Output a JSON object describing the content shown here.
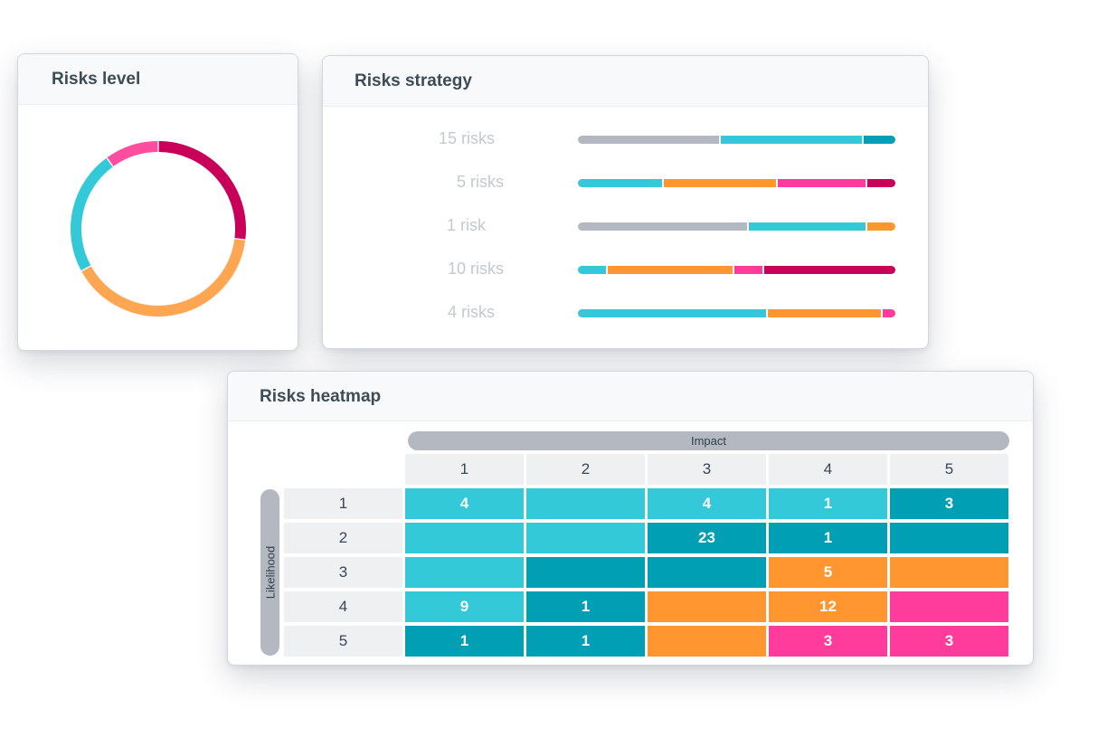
{
  "colors": {
    "gray": "#b4b8c0",
    "light_teal": "#33c9d8",
    "dark_teal": "#009fb4",
    "orange": "#ff9630",
    "pink": "#ff3c9b",
    "magenta": "#c8005a",
    "soft_orange": "#ffa653",
    "soft_pink": "#ff4e9f"
  },
  "risks_level": {
    "title": "Risks level",
    "chart_data": {
      "type": "pie",
      "segments": [
        {
          "color": "magenta",
          "value": 27
        },
        {
          "color": "soft_orange",
          "value": 40
        },
        {
          "color": "light_teal",
          "value": 23
        },
        {
          "color": "soft_pink",
          "value": 10
        }
      ]
    }
  },
  "risks_strategy": {
    "title": "Risks strategy",
    "chart_data": {
      "type": "bar",
      "orientation": "horizontal-stacked",
      "rows": [
        {
          "label": "15 risks",
          "segments": [
            {
              "color": "gray",
              "value": 45
            },
            {
              "color": "light_teal",
              "value": 45
            },
            {
              "color": "dark_teal",
              "value": 10
            }
          ]
        },
        {
          "label": "5 risks",
          "segments": [
            {
              "color": "light_teal",
              "value": 27
            },
            {
              "color": "orange",
              "value": 36
            },
            {
              "color": "pink",
              "value": 28
            },
            {
              "color": "magenta",
              "value": 9
            }
          ]
        },
        {
          "label": "1 risk",
          "segments": [
            {
              "color": "gray",
              "value": 54
            },
            {
              "color": "light_teal",
              "value": 37
            },
            {
              "color": "orange",
              "value": 9
            }
          ]
        },
        {
          "label": "10 risks",
          "segments": [
            {
              "color": "light_teal",
              "value": 9
            },
            {
              "color": "orange",
              "value": 40
            },
            {
              "color": "pink",
              "value": 9
            },
            {
              "color": "magenta",
              "value": 42
            }
          ]
        },
        {
          "label": "4 risks",
          "segments": [
            {
              "color": "light_teal",
              "value": 60
            },
            {
              "color": "orange",
              "value": 36
            },
            {
              "color": "pink",
              "value": 4
            }
          ]
        }
      ]
    }
  },
  "risks_heatmap": {
    "title": "Risks heatmap",
    "x_axis_label": "Impact",
    "y_axis_label": "Likelihood",
    "chart_data": {
      "type": "heatmap",
      "columns": [
        "1",
        "2",
        "3",
        "4",
        "5"
      ],
      "rows": [
        "1",
        "2",
        "3",
        "4",
        "5"
      ],
      "cells": [
        [
          {
            "value": "4",
            "color": "light_teal"
          },
          {
            "value": "",
            "color": "light_teal"
          },
          {
            "value": "4",
            "color": "light_teal"
          },
          {
            "value": "1",
            "color": "light_teal"
          },
          {
            "value": "3",
            "color": "dark_teal"
          }
        ],
        [
          {
            "value": "",
            "color": "light_teal"
          },
          {
            "value": "",
            "color": "light_teal"
          },
          {
            "value": "23",
            "color": "dark_teal"
          },
          {
            "value": "1",
            "color": "dark_teal"
          },
          {
            "value": "",
            "color": "dark_teal"
          }
        ],
        [
          {
            "value": "",
            "color": "light_teal"
          },
          {
            "value": "",
            "color": "dark_teal"
          },
          {
            "value": "",
            "color": "dark_teal"
          },
          {
            "value": "5",
            "color": "orange"
          },
          {
            "value": "",
            "color": "orange"
          }
        ],
        [
          {
            "value": "9",
            "color": "light_teal"
          },
          {
            "value": "1",
            "color": "dark_teal"
          },
          {
            "value": "",
            "color": "orange"
          },
          {
            "value": "12",
            "color": "orange"
          },
          {
            "value": "",
            "color": "pink"
          }
        ],
        [
          {
            "value": "1",
            "color": "dark_teal"
          },
          {
            "value": "1",
            "color": "dark_teal"
          },
          {
            "value": "",
            "color": "orange"
          },
          {
            "value": "3",
            "color": "pink"
          },
          {
            "value": "3",
            "color": "pink"
          }
        ]
      ]
    }
  }
}
